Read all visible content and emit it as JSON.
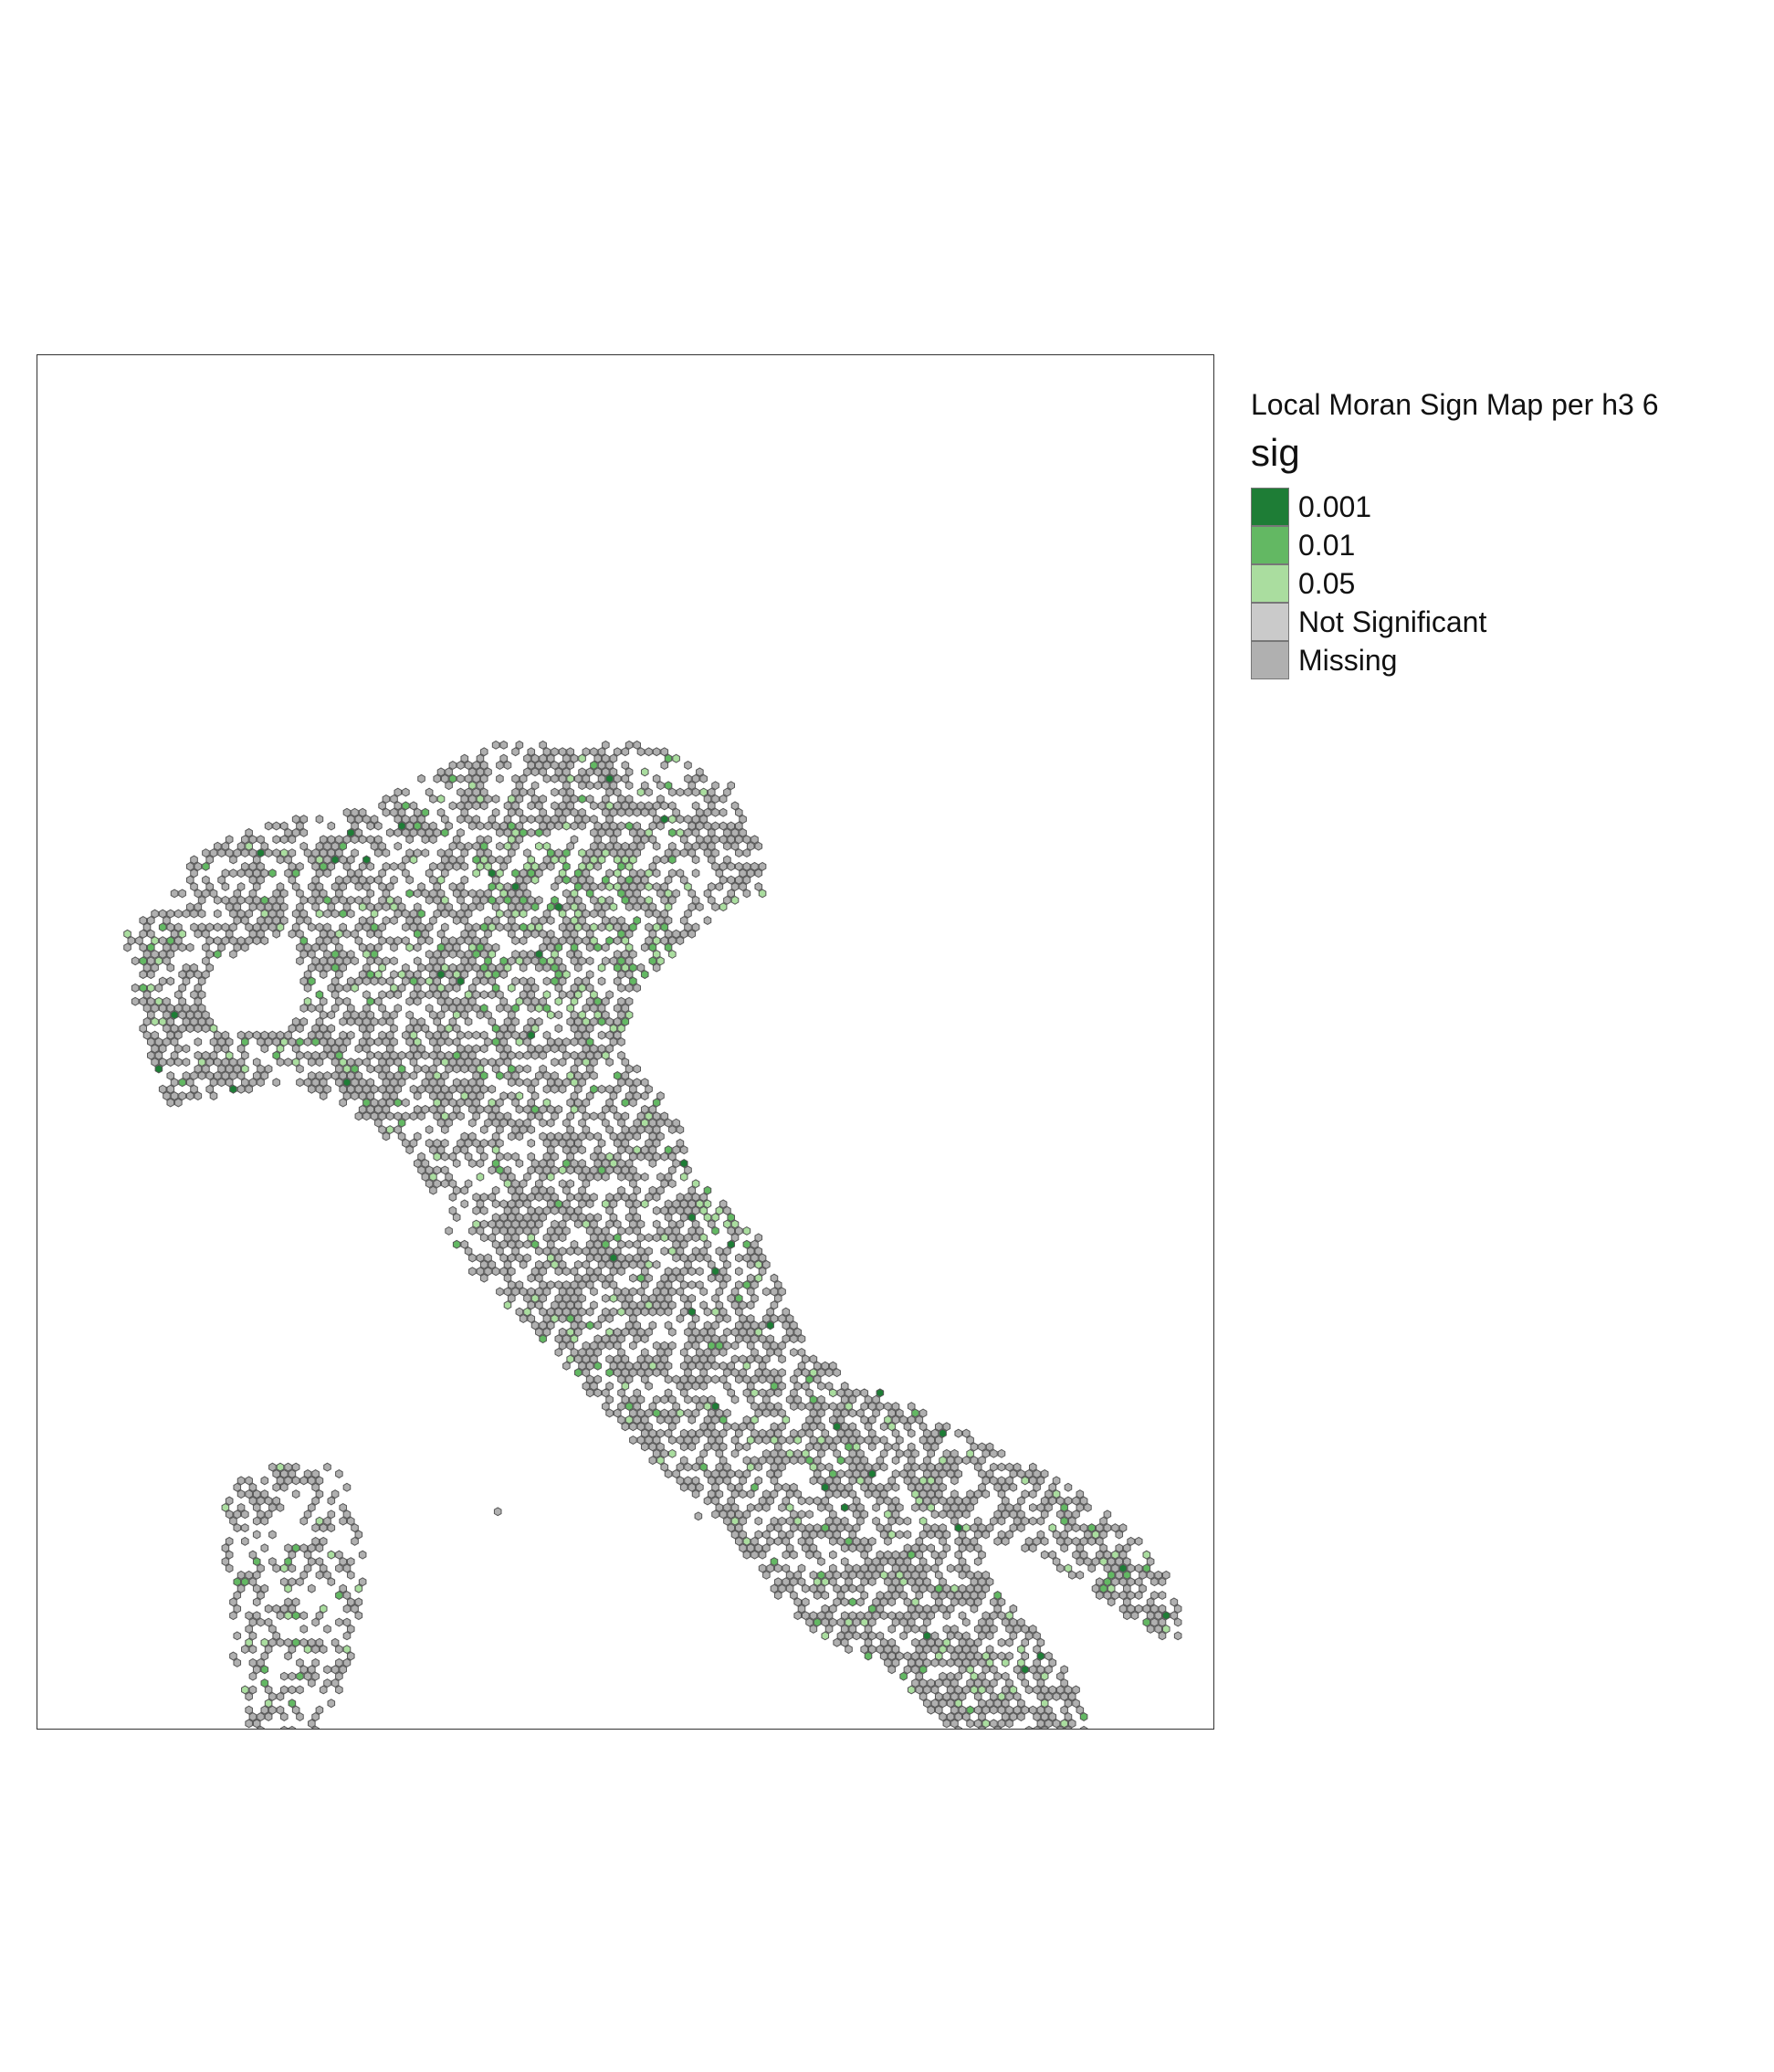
{
  "map": {
    "legend_title": "Local Moran Sign Map per h3 6",
    "legend_variable": "sig",
    "legend_items": [
      {
        "label": "0.001",
        "color": "#1e7d36"
      },
      {
        "label": "0.01",
        "color": "#63b863"
      },
      {
        "label": "0.05",
        "color": "#aadd9f"
      },
      {
        "label": "Not Significant",
        "color": "#cacaca"
      },
      {
        "label": "Missing",
        "color": "#b0b0b0"
      }
    ],
    "region_depicted": "Italy",
    "cell_outline_color": "#555555",
    "frame_color": "#333333"
  }
}
